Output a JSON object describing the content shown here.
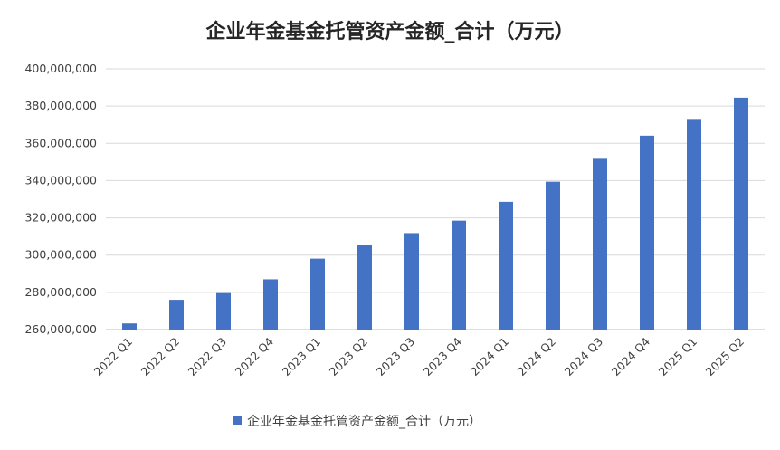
{
  "chart_data": {
    "type": "bar",
    "title": "企业年金基金托管资产金额_合计（万元）",
    "xlabel": "",
    "ylabel": "",
    "ylim": [
      260000000,
      400000000
    ],
    "yticks": [
      260000000,
      280000000,
      300000000,
      320000000,
      340000000,
      360000000,
      380000000,
      400000000
    ],
    "ytick_labels": [
      "260,000,000",
      "280,000,000",
      "300,000,000",
      "320,000,000",
      "340,000,000",
      "360,000,000",
      "380,000,000",
      "400,000,000"
    ],
    "grid": true,
    "legend_position": "bottom",
    "categories": [
      "2022 Q1",
      "2022 Q2",
      "2022 Q3",
      "2022 Q4",
      "2023 Q1",
      "2023 Q2",
      "2023 Q3",
      "2023 Q4",
      "2024 Q1",
      "2024 Q2",
      "2024 Q3",
      "2024 Q4",
      "2025 Q1",
      "2025 Q2"
    ],
    "series": [
      {
        "name": "企业年金基金托管资产金额_合计（万元）",
        "color": "#4472c4",
        "values": [
          263300000,
          276000000,
          279600000,
          287000000,
          298100000,
          305200000,
          311800000,
          318500000,
          328600000,
          339400000,
          351700000,
          364100000,
          373100000,
          384500000
        ]
      }
    ]
  }
}
